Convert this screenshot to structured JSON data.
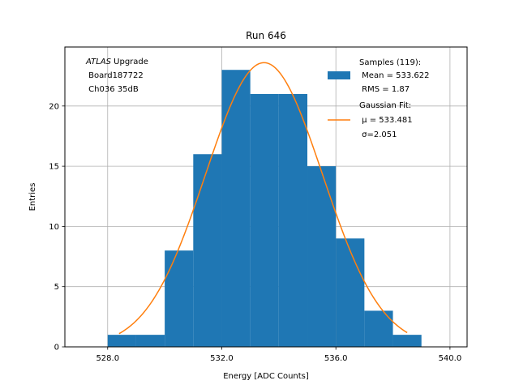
{
  "chart_data": {
    "type": "bar",
    "title": "Run 646",
    "xlabel": "Energy [ADC Counts]",
    "ylabel": "Entries",
    "xlim": [
      526.5,
      540.6
    ],
    "ylim": [
      0,
      24.9
    ],
    "grid": true,
    "x_ticks": [
      528.0,
      532.0,
      536.0,
      540.0
    ],
    "x_tick_labels": [
      "528.0",
      "532.0",
      "536.0",
      "540.0"
    ],
    "y_ticks": [
      0,
      5,
      10,
      15,
      20
    ],
    "y_tick_labels": [
      "0",
      "5",
      "10",
      "15",
      "20"
    ],
    "histogram": {
      "name": "Samples",
      "color": "#1f77b4",
      "bin_edges": [
        528,
        529,
        530,
        531,
        532,
        533,
        534,
        535,
        536,
        537,
        538,
        539
      ],
      "counts": [
        1,
        1,
        8,
        16,
        23,
        21,
        21,
        15,
        9,
        3,
        1
      ]
    },
    "fit": {
      "name": "Gaussian Fit",
      "color": "#ff7f0e",
      "mu": 533.481,
      "sigma": 2.051,
      "amplitude": 23.6,
      "x_range": [
        528.4,
        538.5
      ]
    },
    "annotation": {
      "line1_italic": "ATLAS",
      "line1_rest": " Upgrade",
      "line2": " Board187722",
      "line3": " Ch036 35dB",
      "position": "top-left"
    },
    "legend": {
      "position": "top-right",
      "entries": [
        {
          "kind": "patch",
          "lines": [
            "Samples (119):",
            " Mean = 533.622",
            " RMS = 1.87"
          ]
        },
        {
          "kind": "line",
          "lines": [
            "Gaussian Fit:",
            " μ = 533.481",
            " σ=2.051"
          ]
        }
      ]
    }
  }
}
